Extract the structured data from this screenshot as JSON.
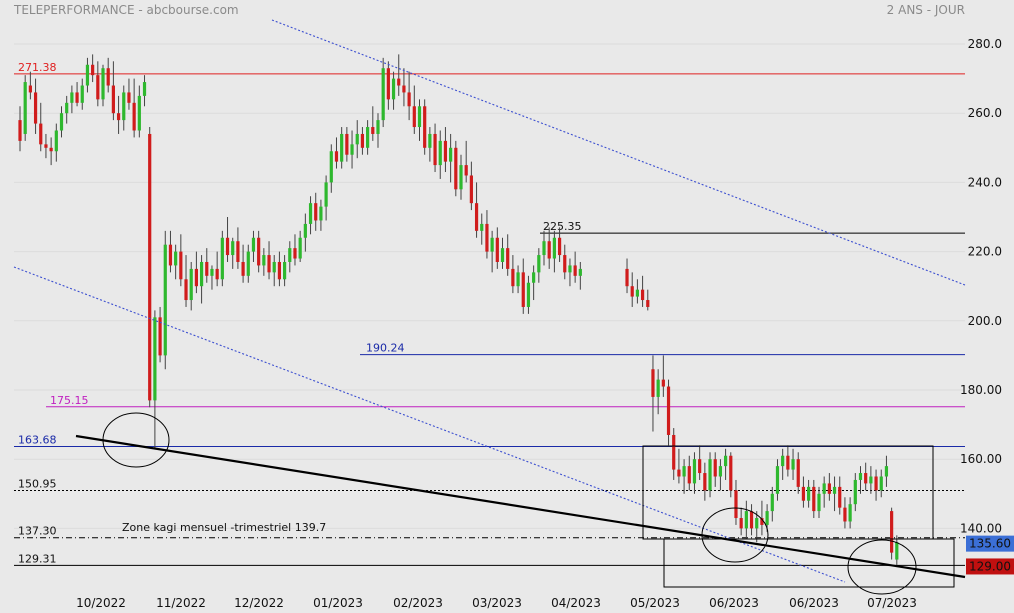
{
  "header": {
    "title": "TELEPERFORMANCE - abcbourse.com",
    "period": "2 ANS - JOUR"
  },
  "colors": {
    "background": "#e9e9e9",
    "up_candle": "#2eb82e",
    "down_candle": "#d01c1c",
    "resistance_red": "#e02020",
    "support_blue": "#1a2aa8",
    "magenta": "#c020c0",
    "dotted_channel": "#3c4fd0",
    "trendline": "#000000",
    "last_price_badge": "#3b6fd6",
    "low_badge": "#c01010"
  },
  "chart_data": {
    "type": "candlestick",
    "title": "TELEPERFORMANCE - abcbourse.com",
    "period": "2 ANS - JOUR",
    "ylim": [
      126,
      285
    ],
    "y_ticks": [
      "280.0",
      "260.0",
      "240.0",
      "220.0",
      "200.0",
      "180.00",
      "160.00",
      "140.00"
    ],
    "x_ticks": [
      "10/2022",
      "11/2022",
      "12/2022",
      "01/2023",
      "02/2023",
      "03/2023",
      "04/2023",
      "05/2023",
      "06/2023",
      "06/2023",
      "07/2023"
    ],
    "horizontal_levels": [
      {
        "label": "271.38",
        "value": 271.38,
        "style": "solid",
        "color": "#e02020"
      },
      {
        "label": "225.35",
        "value": 225.35,
        "style": "solid",
        "color": "#000000"
      },
      {
        "label": "190.24",
        "value": 190.24,
        "style": "solid",
        "color": "#1a2aa8"
      },
      {
        "label": "175.15",
        "value": 175.15,
        "style": "solid",
        "color": "#c020c0"
      },
      {
        "label": "163.68",
        "value": 163.68,
        "style": "solid",
        "color": "#1a2aa8"
      },
      {
        "label": "150.95",
        "value": 150.95,
        "style": "dotted",
        "color": "#000000"
      },
      {
        "label": "137.30",
        "value": 137.3,
        "style": "dashdot",
        "color": "#000000"
      },
      {
        "label": "129.31",
        "value": 129.31,
        "style": "solid",
        "color": "#000000"
      }
    ],
    "annotations": [
      "Zone kagi mensuel -trimestriel 139.7"
    ],
    "price_badges": [
      {
        "label": "135.60",
        "value": 135.6,
        "color": "#3b6fd6"
      },
      {
        "label": "129.00",
        "value": 129.0,
        "color": "#c01010"
      }
    ],
    "series": [
      {
        "ohlc": [
          [
            258,
            262,
            249,
            252
          ],
          [
            254,
            271,
            252,
            269
          ],
          [
            268,
            272,
            264,
            266
          ],
          [
            266,
            270,
            254,
            257
          ],
          [
            257,
            263,
            249,
            251
          ],
          [
            251,
            254,
            247,
            250
          ],
          [
            250,
            253,
            245,
            249
          ],
          [
            249,
            257,
            246,
            255
          ],
          [
            255,
            262,
            253,
            260
          ],
          [
            260,
            265,
            257,
            263
          ],
          [
            263,
            268,
            260,
            266
          ],
          [
            266,
            269,
            262,
            263
          ],
          [
            263,
            270,
            261,
            268
          ],
          [
            268,
            276,
            266,
            274
          ],
          [
            274,
            277,
            269,
            271
          ],
          [
            271,
            275,
            262,
            264
          ],
          [
            264,
            274,
            262,
            273
          ],
          [
            273,
            276,
            266,
            268
          ],
          [
            268,
            275,
            258,
            260
          ],
          [
            260,
            265,
            254,
            258
          ],
          [
            258,
            268,
            255,
            266
          ],
          [
            266,
            270,
            261,
            263
          ],
          [
            263,
            270,
            253,
            255
          ],
          [
            255,
            268,
            253,
            265
          ],
          [
            265,
            271,
            262,
            269
          ],
          [
            254,
            256,
            175,
            177
          ],
          [
            177,
            203,
            163,
            201
          ],
          [
            201,
            204,
            188,
            190
          ],
          [
            190,
            226,
            186,
            222
          ],
          [
            222,
            226,
            214,
            216
          ],
          [
            216,
            222,
            212,
            220
          ],
          [
            220,
            225,
            210,
            212
          ],
          [
            212,
            219,
            204,
            206
          ],
          [
            206,
            217,
            203,
            215
          ],
          [
            215,
            220,
            208,
            210
          ],
          [
            210,
            219,
            205,
            217
          ],
          [
            217,
            221,
            211,
            213
          ],
          [
            213,
            216,
            209,
            215
          ],
          [
            215,
            220,
            210,
            212
          ],
          [
            212,
            226,
            210,
            224
          ],
          [
            224,
            230,
            217,
            219
          ],
          [
            219,
            224,
            215,
            223
          ],
          [
            223,
            227,
            215,
            217
          ],
          [
            217,
            222,
            211,
            213
          ],
          [
            213,
            222,
            211,
            220
          ],
          [
            220,
            226,
            217,
            224
          ],
          [
            224,
            226,
            214,
            216
          ],
          [
            216,
            221,
            213,
            219
          ],
          [
            219,
            223,
            212,
            214
          ],
          [
            214,
            219,
            210,
            217
          ],
          [
            217,
            220,
            210,
            212
          ],
          [
            212,
            219,
            210,
            217
          ],
          [
            217,
            223,
            214,
            221
          ],
          [
            221,
            225,
            216,
            218
          ],
          [
            218,
            226,
            217,
            224
          ],
          [
            224,
            231,
            220,
            228
          ],
          [
            228,
            236,
            225,
            234
          ],
          [
            234,
            237,
            226,
            229
          ],
          [
            229,
            235,
            226,
            233
          ],
          [
            233,
            242,
            229,
            240
          ],
          [
            240,
            251,
            237,
            249
          ],
          [
            249,
            253,
            244,
            246
          ],
          [
            246,
            256,
            244,
            254
          ],
          [
            254,
            256,
            246,
            248
          ],
          [
            248,
            255,
            244,
            251
          ],
          [
            251,
            258,
            247,
            254
          ],
          [
            254,
            256,
            248,
            250
          ],
          [
            250,
            258,
            248,
            256
          ],
          [
            256,
            262,
            252,
            254
          ],
          [
            254,
            260,
            250,
            258
          ],
          [
            258,
            276,
            256,
            273
          ],
          [
            273,
            275,
            261,
            264
          ],
          [
            264,
            272,
            261,
            270
          ],
          [
            270,
            277,
            265,
            268
          ],
          [
            268,
            273,
            262,
            266
          ],
          [
            266,
            272,
            258,
            262
          ],
          [
            262,
            268,
            254,
            256
          ],
          [
            256,
            264,
            252,
            262
          ],
          [
            262,
            264,
            248,
            250
          ],
          [
            250,
            256,
            246,
            254
          ],
          [
            254,
            257,
            243,
            245
          ],
          [
            245,
            255,
            241,
            252
          ],
          [
            252,
            256,
            243,
            246
          ],
          [
            246,
            254,
            240,
            250
          ],
          [
            250,
            252,
            236,
            238
          ],
          [
            238,
            248,
            235,
            245
          ],
          [
            245,
            252,
            240,
            242
          ],
          [
            242,
            246,
            232,
            234
          ],
          [
            234,
            240,
            224,
            226
          ],
          [
            226,
            231,
            222,
            228
          ],
          [
            228,
            232,
            218,
            220
          ],
          [
            220,
            226,
            214,
            224
          ],
          [
            224,
            227,
            215,
            217
          ],
          [
            217,
            224,
            215,
            221
          ],
          [
            221,
            225,
            213,
            215
          ],
          [
            215,
            219,
            208,
            210
          ],
          [
            210,
            216,
            208,
            214
          ],
          [
            214,
            218,
            202,
            204
          ],
          [
            204,
            213,
            202,
            211
          ],
          [
            211,
            216,
            206,
            214
          ],
          [
            214,
            221,
            211,
            219
          ],
          [
            219,
            226,
            216,
            223
          ],
          [
            223,
            227,
            215,
            218
          ],
          [
            218,
            226,
            214,
            224
          ],
          [
            224,
            227,
            217,
            219
          ],
          [
            219,
            222,
            212,
            214
          ],
          [
            214,
            218,
            210,
            216
          ],
          [
            216,
            220,
            211,
            213
          ],
          [
            213,
            217,
            209,
            215
          ],
          [
            215,
            218,
            208,
            210
          ],
          [
            210,
            214,
            204,
            207
          ],
          [
            207,
            212,
            205,
            209
          ],
          [
            209,
            213,
            204,
            206
          ],
          [
            206,
            209,
            203,
            204
          ],
          [
            186,
            190,
            168,
            178
          ],
          [
            178,
            186,
            173,
            183
          ],
          [
            183,
            190,
            178,
            181
          ],
          [
            181,
            183,
            164,
            167
          ],
          [
            167,
            169,
            154,
            157
          ],
          [
            157,
            163,
            153,
            155
          ],
          [
            155,
            160,
            150,
            158
          ],
          [
            158,
            161,
            151,
            153
          ],
          [
            153,
            162,
            150,
            160
          ],
          [
            160,
            164,
            154,
            156
          ],
          [
            156,
            159,
            148,
            151
          ],
          [
            151,
            162,
            149,
            160
          ],
          [
            160,
            162,
            152,
            155
          ],
          [
            155,
            160,
            151,
            158
          ],
          [
            158,
            163,
            154,
            161
          ],
          [
            161,
            162,
            149,
            151
          ],
          [
            151,
            154,
            141,
            143
          ],
          [
            143,
            146,
            138,
            140
          ],
          [
            140,
            148,
            137,
            145
          ],
          [
            145,
            147,
            138,
            140
          ],
          [
            140,
            145,
            136,
            143
          ],
          [
            143,
            148,
            138,
            141
          ],
          [
            141,
            147,
            139,
            145
          ],
          [
            145,
            152,
            142,
            150
          ],
          [
            150,
            160,
            148,
            158
          ],
          [
            158,
            163,
            154,
            161
          ],
          [
            161,
            164,
            155,
            157
          ],
          [
            157,
            163,
            154,
            160
          ],
          [
            160,
            162,
            150,
            152
          ],
          [
            152,
            155,
            146,
            148
          ],
          [
            148,
            154,
            146,
            152
          ],
          [
            152,
            154,
            143,
            145
          ],
          [
            145,
            152,
            143,
            150
          ],
          [
            150,
            155,
            146,
            153
          ],
          [
            153,
            156,
            148,
            150
          ],
          [
            150,
            155,
            145,
            152
          ],
          [
            152,
            155,
            144,
            146
          ],
          [
            146,
            149,
            140,
            142
          ],
          [
            142,
            149,
            140,
            147
          ],
          [
            147,
            156,
            145,
            154
          ],
          [
            154,
            158,
            150,
            156
          ],
          [
            156,
            159,
            151,
            153
          ],
          [
            153,
            158,
            150,
            155
          ],
          [
            155,
            157,
            148,
            151
          ],
          [
            151,
            157,
            149,
            155
          ],
          [
            155,
            161,
            152,
            158
          ],
          [
            145,
            146,
            131,
            133
          ],
          [
            131,
            138,
            129,
            136
          ]
        ]
      }
    ]
  }
}
